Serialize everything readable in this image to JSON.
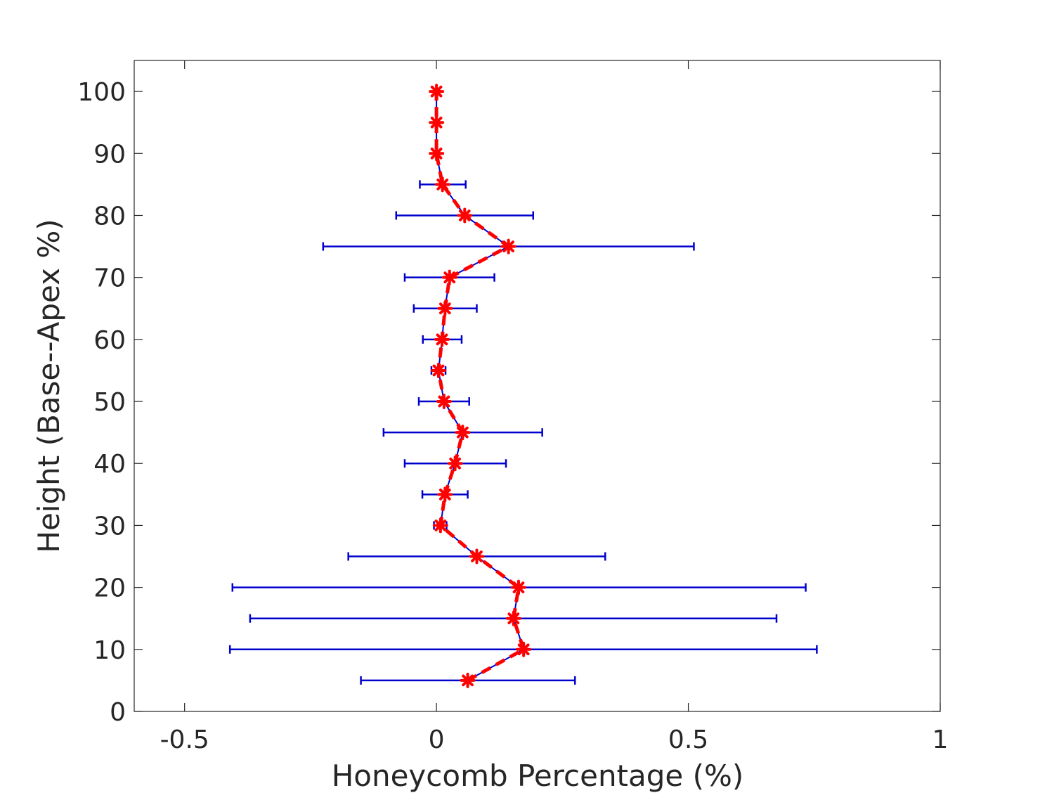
{
  "chart_data": {
    "type": "line",
    "title": "",
    "xlabel": "Honeycomb Percentage (%)",
    "ylabel": "Height (Base--Apex %)",
    "xlim": [
      -0.6,
      1.0
    ],
    "ylim": [
      0,
      105
    ],
    "xticks": [
      -0.5,
      0,
      0.5,
      1
    ],
    "xtick_labels": [
      "-0.5",
      "0",
      "0.5",
      "1"
    ],
    "yticks": [
      0,
      10,
      20,
      30,
      40,
      50,
      60,
      70,
      80,
      90,
      100
    ],
    "ytick_labels": [
      "0",
      "10",
      "20",
      "30",
      "40",
      "50",
      "60",
      "70",
      "80",
      "90",
      "100"
    ],
    "grid": false,
    "colors": {
      "mean": "#ff0000",
      "error": "#0000cc",
      "axis": "#262626"
    },
    "series": [
      {
        "style": "red dashed line with star markers, horizontal blue error bars",
        "points": [
          {
            "y": 5,
            "x": 0.062,
            "xerr_low": -0.15,
            "xerr_high": 0.275
          },
          {
            "y": 10,
            "x": 0.173,
            "xerr_low": -0.41,
            "xerr_high": 0.755
          },
          {
            "y": 15,
            "x": 0.153,
            "xerr_low": -0.37,
            "xerr_high": 0.675
          },
          {
            "y": 20,
            "x": 0.163,
            "xerr_low": -0.405,
            "xerr_high": 0.733
          },
          {
            "y": 25,
            "x": 0.08,
            "xerr_low": -0.175,
            "xerr_high": 0.335
          },
          {
            "y": 30,
            "x": 0.008,
            "xerr_low": -0.005,
            "xerr_high": 0.02
          },
          {
            "y": 35,
            "x": 0.017,
            "xerr_low": -0.028,
            "xerr_high": 0.062
          },
          {
            "y": 40,
            "x": 0.037,
            "xerr_low": -0.063,
            "xerr_high": 0.138
          },
          {
            "y": 45,
            "x": 0.052,
            "xerr_low": -0.105,
            "xerr_high": 0.21
          },
          {
            "y": 50,
            "x": 0.015,
            "xerr_low": -0.035,
            "xerr_high": 0.065
          },
          {
            "y": 55,
            "x": 0.004,
            "xerr_low": -0.01,
            "xerr_high": 0.018
          },
          {
            "y": 60,
            "x": 0.011,
            "xerr_low": -0.027,
            "xerr_high": 0.05
          },
          {
            "y": 65,
            "x": 0.017,
            "xerr_low": -0.045,
            "xerr_high": 0.08
          },
          {
            "y": 70,
            "x": 0.026,
            "xerr_low": -0.063,
            "xerr_high": 0.115
          },
          {
            "y": 75,
            "x": 0.143,
            "xerr_low": -0.225,
            "xerr_high": 0.511
          },
          {
            "y": 80,
            "x": 0.056,
            "xerr_low": -0.08,
            "xerr_high": 0.192
          },
          {
            "y": 85,
            "x": 0.012,
            "xerr_low": -0.033,
            "xerr_high": 0.058
          },
          {
            "y": 90,
            "x": 0.0,
            "xerr_low": 0.0,
            "xerr_high": 0.0
          },
          {
            "y": 95,
            "x": 0.0,
            "xerr_low": 0.0,
            "xerr_high": 0.0
          },
          {
            "y": 100,
            "x": 0.0,
            "xerr_low": 0.0,
            "xerr_high": 0.0
          }
        ]
      }
    ]
  }
}
